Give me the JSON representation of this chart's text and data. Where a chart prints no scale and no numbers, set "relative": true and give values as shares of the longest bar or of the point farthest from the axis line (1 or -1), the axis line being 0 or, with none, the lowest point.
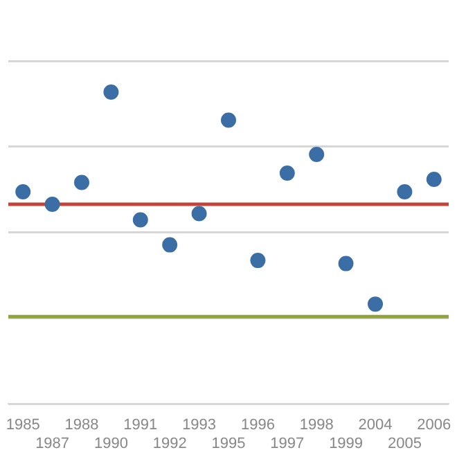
{
  "chart_data": {
    "type": "scatter",
    "relative": true,
    "categories": [
      "1985",
      "1987",
      "1988",
      "1990",
      "1991",
      "1992",
      "1993",
      "1995",
      "1996",
      "1997",
      "1998",
      "1999",
      "2004",
      "2005",
      "2006"
    ],
    "values": [
      0.68,
      0.64,
      0.71,
      1,
      0.59,
      0.51,
      0.61,
      0.91,
      0.46,
      0.74,
      0.8,
      0.45,
      0.32,
      0.68,
      0.72
    ],
    "color": "#3a6ea5",
    "marker": "circle",
    "grid": "y",
    "legend": false,
    "ref_lines": [
      {
        "axis": "y",
        "value": 0.64,
        "color": "#c0463c"
      },
      {
        "axis": "y",
        "value": 0.28,
        "color": "#8fa53a"
      }
    ]
  }
}
